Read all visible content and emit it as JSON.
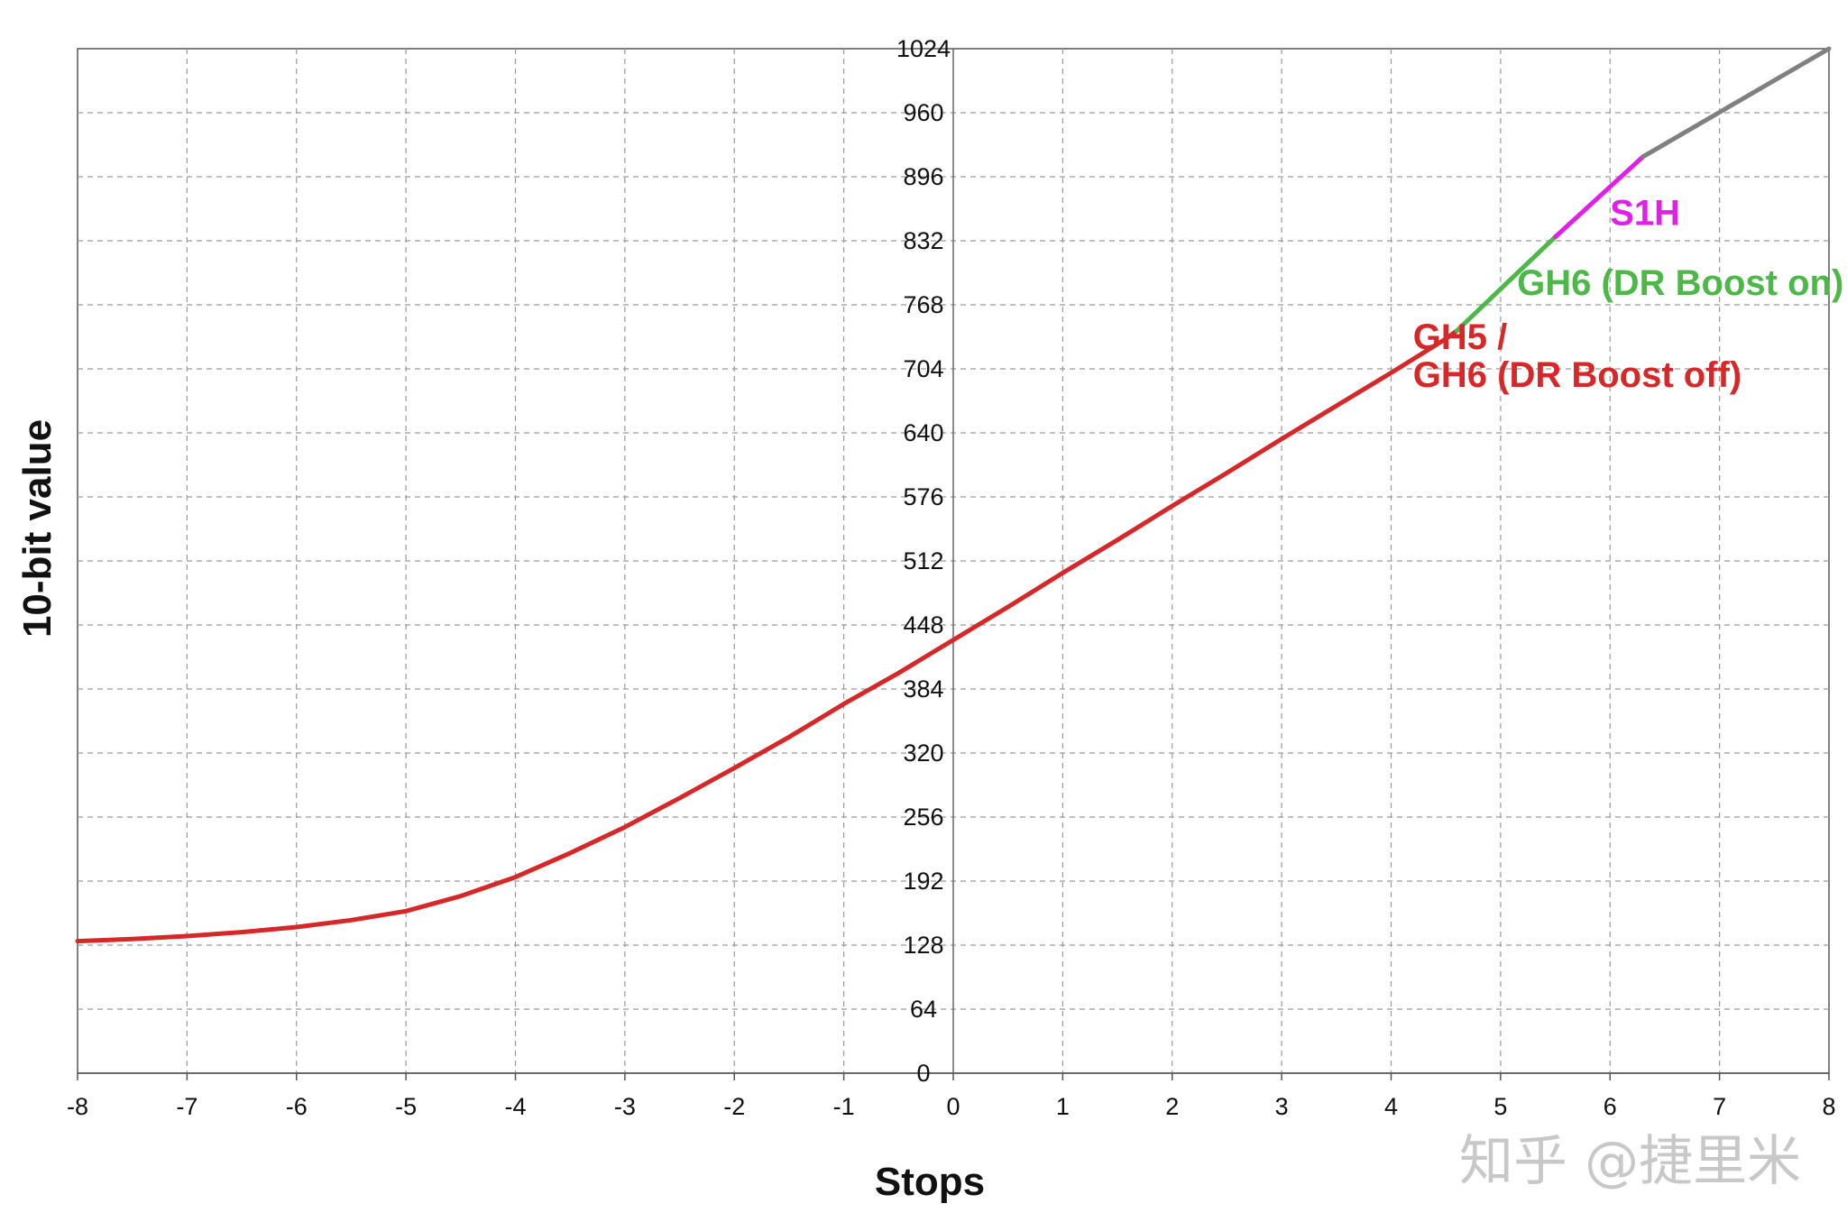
{
  "chart_data": {
    "type": "line",
    "xlabel": "Stops",
    "ylabel": "10-bit value",
    "xlim": [
      -8,
      8
    ],
    "ylim": [
      0,
      1024
    ],
    "xticks": [
      -8,
      -7,
      -6,
      -5,
      -4,
      -3,
      -2,
      -1,
      0,
      1,
      2,
      3,
      4,
      5,
      6,
      7,
      8
    ],
    "yticks": [
      0,
      64,
      128,
      192,
      256,
      320,
      384,
      448,
      512,
      576,
      640,
      704,
      768,
      832,
      896,
      960,
      1024
    ],
    "grid": true,
    "series": [
      {
        "name": "GH5 / GH6 (DR Boost off)",
        "color": "#d62828",
        "x": [
          -8,
          -7.5,
          -7,
          -6.5,
          -6,
          -5.5,
          -5,
          -4.5,
          -4,
          -3.5,
          -3,
          -2.5,
          -2,
          -1.5,
          -1,
          -0.5,
          0,
          0.5,
          1,
          1.5,
          2,
          2.5,
          3,
          3.5,
          4,
          4.5,
          4.6
        ],
        "y": [
          132,
          134,
          137,
          141,
          146,
          153,
          162,
          177,
          196,
          220,
          246,
          275,
          305,
          336,
          369,
          400,
          433,
          466,
          500,
          533,
          567,
          600,
          634,
          667,
          700,
          734,
          742
        ]
      },
      {
        "name": "GH6 (DR Boost on)",
        "color": "#4db848",
        "x": [
          4.6,
          5.5
        ],
        "y": [
          742,
          836
        ]
      },
      {
        "name": "S1H",
        "color": "#e020e8",
        "x": [
          5.5,
          6.3
        ],
        "y": [
          836,
          916
        ]
      },
      {
        "name": "",
        "color": "#808080",
        "x": [
          6.3,
          8
        ],
        "y": [
          916,
          1024
        ]
      }
    ],
    "annotations": [
      {
        "lines": [
          "S1H"
        ],
        "color": "#e020e8",
        "x": 6.0,
        "y": 848
      },
      {
        "lines": [
          "GH6 (DR Boost on)"
        ],
        "color": "#4db848",
        "x": 5.15,
        "y": 778
      },
      {
        "lines": [
          "GH5 /",
          "GH6 (DR Boost off)"
        ],
        "color": "#d62828",
        "x": 4.2,
        "y": 724
      }
    ]
  },
  "watermark": "知乎 @捷里米"
}
